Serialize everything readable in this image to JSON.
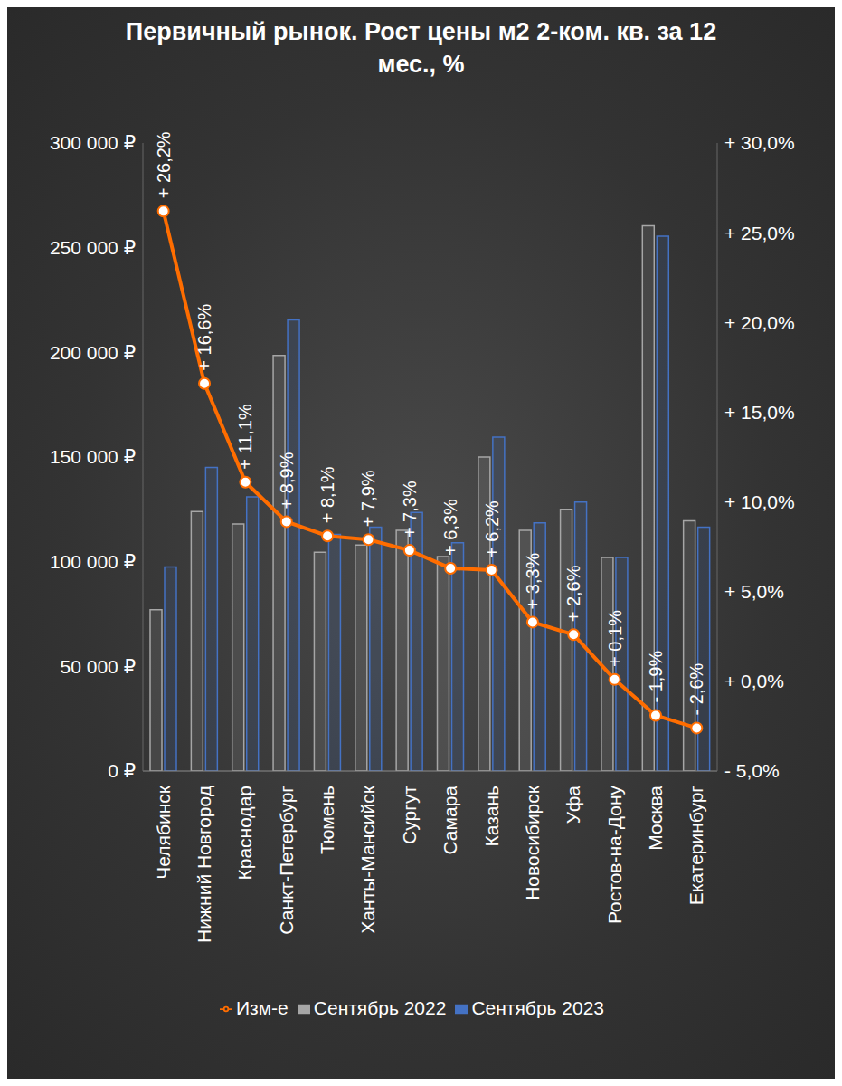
{
  "chart_data": {
    "type": "bar",
    "title": "Первичный рынок. Рост цены м2 2-ком. кв. за 12 мес., %",
    "categories": [
      "Челябинск",
      "Нижний Новгород",
      "Краснодар",
      "Санкт-Петербург",
      "Тюмень",
      "Ханты-Мансийск",
      "Сургут",
      "Самара",
      "Казань",
      "Новосибирск",
      "Уфа",
      "Ростов-на-Дону",
      "Москва",
      "Екатеринбург"
    ],
    "series": [
      {
        "name": "Сентябрь 2022",
        "type": "bar",
        "color": "#a6a6a6",
        "values": [
          77000,
          124000,
          118000,
          198500,
          104500,
          108000,
          115000,
          102500,
          150000,
          115000,
          125000,
          102000,
          260500,
          119500
        ]
      },
      {
        "name": "Сентябрь 2023",
        "type": "bar",
        "color": "#4472c4",
        "values": [
          97500,
          145000,
          131000,
          215500,
          113000,
          116500,
          123500,
          109000,
          159500,
          118500,
          128500,
          102000,
          255500,
          116500
        ]
      },
      {
        "name": "Изм-е",
        "type": "line",
        "axis": "y2",
        "color": "#ff6d00",
        "marker": "circle",
        "data_labels": true,
        "values": [
          26.2,
          16.6,
          11.1,
          8.9,
          8.1,
          7.9,
          7.3,
          6.3,
          6.2,
          3.3,
          2.6,
          0.1,
          -1.9,
          -2.6
        ],
        "value_labels": [
          "+ 26,2%",
          "+ 16,6%",
          "+ 11,1%",
          "+ 8,9%",
          "+ 8,1%",
          "+ 7,9%",
          "+ 7,3%",
          "+ 6,3%",
          "+ 6,2%",
          "+ 3,3%",
          "+ 2,6%",
          "+ 0,1%",
          "- 1,9%",
          "- 2,6%"
        ]
      }
    ],
    "ylim": [
      0,
      300000
    ],
    "yticks": [
      {
        "value": 0,
        "label": "0 ₽"
      },
      {
        "value": 50000,
        "label": "50 000 ₽"
      },
      {
        "value": 100000,
        "label": "100 000 ₽"
      },
      {
        "value": 150000,
        "label": "150 000 ₽"
      },
      {
        "value": 200000,
        "label": "200 000 ₽"
      },
      {
        "value": 250000,
        "label": "250 000 ₽"
      },
      {
        "value": 300000,
        "label": "300 000 ₽"
      }
    ],
    "y2lim": [
      -5,
      30
    ],
    "y2ticks": [
      {
        "value": -5,
        "label": "- 5,0%"
      },
      {
        "value": 0,
        "label": "+ 0,0%"
      },
      {
        "value": 5,
        "label": "+ 5,0%"
      },
      {
        "value": 10,
        "label": "+ 10,0%"
      },
      {
        "value": 15,
        "label": "+ 15,0%"
      },
      {
        "value": 20,
        "label": "+ 20,0%"
      },
      {
        "value": 25,
        "label": "+ 25,0%"
      },
      {
        "value": 30,
        "label": "+ 30,0%"
      }
    ],
    "grid": false,
    "legend": "bottom"
  }
}
